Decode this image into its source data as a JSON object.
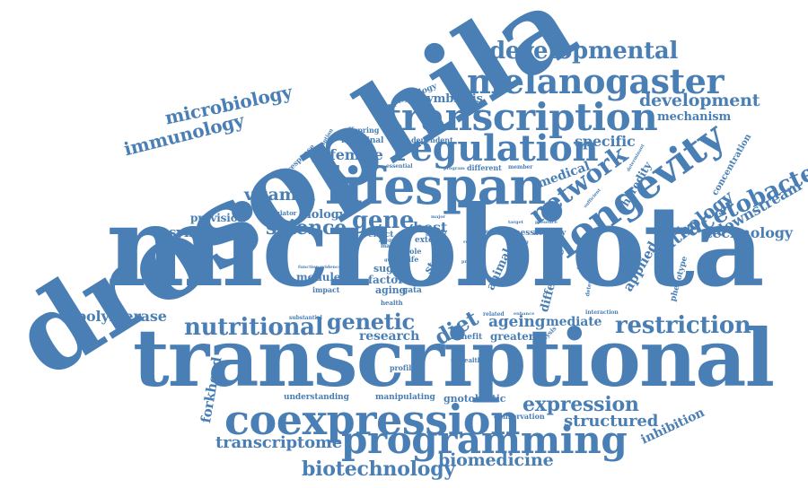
{
  "cloud": {
    "color": "#4a7fb5",
    "words": [
      "drosophila",
      "microbiota",
      "transcriptional",
      "coexpression",
      "programming",
      "lifespan",
      "transcription",
      "regulation",
      "melanogaster",
      "longevity",
      "developmental",
      "microbiology",
      "immunology",
      "development",
      "mechanism",
      "symbiosis",
      "gene",
      "science",
      "network",
      "acetobacter",
      "pathology",
      "downstream",
      "technology",
      "nutritional",
      "genetic",
      "restriction",
      "polymerase",
      "synthetic",
      "vitamin",
      "provision",
      "biology",
      "host",
      "female",
      "specific",
      "medical",
      "heredity",
      "concentration",
      "expression",
      "structured",
      "transcriptome",
      "biotechnology",
      "biomedicine",
      "forkhead",
      "inhibition",
      "diet",
      "ageing",
      "mediate",
      "research",
      "greater",
      "gnotobiotic",
      "conservation",
      "understanding",
      "manipulating",
      "profiling",
      "unhealthy",
      "benefit",
      "applied",
      "difference",
      "phenotype",
      "module",
      "factor",
      "aging",
      "sugar",
      "tissue",
      "stem",
      "animal",
      "role",
      "life",
      "impact",
      "health",
      "effect",
      "extend",
      "fitness",
      "activity",
      "regulator",
      "intestinal",
      "dependent",
      "offspring",
      "response",
      "physiology",
      "consumption",
      "essential",
      "different",
      "member",
      "program",
      "reveal",
      "evidence",
      "function",
      "substantial",
      "related",
      "enhance",
      "interaction",
      "analysis",
      "gata",
      "determined",
      "organismal",
      "target",
      "presence",
      "support",
      "sufficient",
      "determinant",
      "axenic",
      "male",
      "growth",
      "major",
      "study",
      "cell",
      "protein",
      "result",
      "coding"
    ]
  }
}
